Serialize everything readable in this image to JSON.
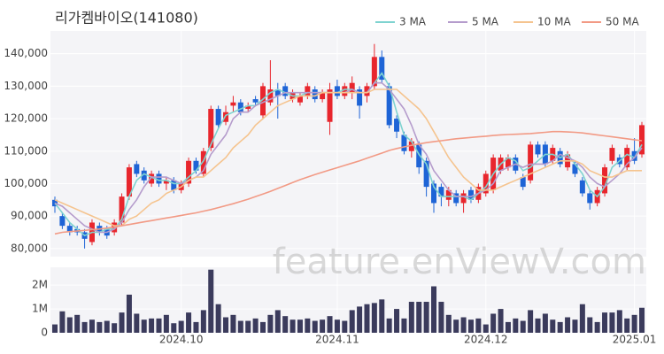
{
  "chart_data": {
    "type": "candlestick",
    "title": "리가켐바이오(141080)",
    "watermark": "feature.enViewV.com",
    "categories": [
      null,
      null,
      null,
      null,
      null,
      null,
      null,
      null,
      null,
      null,
      null,
      null,
      null,
      null,
      null,
      null,
      null,
      "2024.10",
      null,
      null,
      null,
      null,
      null,
      null,
      null,
      null,
      null,
      null,
      null,
      null,
      null,
      null,
      null,
      null,
      null,
      null,
      null,
      null,
      "2024.11",
      null,
      null,
      null,
      null,
      null,
      null,
      null,
      null,
      null,
      null,
      null,
      null,
      null,
      null,
      null,
      null,
      null,
      null,
      null,
      "2024.12",
      null,
      null,
      null,
      null,
      null,
      null,
      null,
      null,
      null,
      null,
      null,
      null,
      null,
      null,
      null,
      null,
      null,
      null,
      null,
      "2025.01",
      null
    ],
    "open": [
      95000,
      90000,
      87000,
      86000,
      85000,
      82000,
      87000,
      86000,
      85000,
      88000,
      96000,
      106000,
      104000,
      100000,
      103000,
      100000,
      101000,
      98000,
      100000,
      107000,
      103000,
      111000,
      123000,
      119000,
      124000,
      125000,
      123000,
      126000,
      121000,
      125000,
      129000,
      130000,
      126000,
      125000,
      127000,
      129000,
      126000,
      119000,
      130000,
      127000,
      128000,
      129000,
      127000,
      130000,
      139000,
      130000,
      120000,
      115000,
      110000,
      112000,
      107000,
      100000,
      99000,
      95000,
      97000,
      94000,
      98000,
      95000,
      97000,
      98000,
      104000,
      105000,
      108000,
      102000,
      101000,
      112000,
      112000,
      107000,
      110000,
      105000,
      106000,
      101000,
      97000,
      94000,
      97000,
      107000,
      108000,
      105000,
      110000,
      109000
    ],
    "high": [
      96000,
      91000,
      88000,
      87000,
      86000,
      89000,
      88000,
      87000,
      89000,
      97000,
      106000,
      107000,
      105000,
      104000,
      104000,
      102000,
      102000,
      101000,
      108000,
      108000,
      111000,
      124000,
      124000,
      124000,
      127000,
      126000,
      125000,
      127000,
      131000,
      138000,
      131000,
      131000,
      129000,
      128000,
      131000,
      130000,
      129000,
      131000,
      132000,
      131000,
      133000,
      130000,
      131000,
      143000,
      141000,
      131000,
      121000,
      116000,
      114000,
      113000,
      108000,
      101000,
      100000,
      99000,
      98000,
      98000,
      99000,
      100000,
      104000,
      109000,
      109000,
      109000,
      109000,
      103000,
      113000,
      113000,
      113000,
      112000,
      111000,
      110000,
      107000,
      102000,
      98000,
      99000,
      106000,
      112000,
      109000,
      112000,
      114000,
      119000
    ],
    "low": [
      91000,
      86000,
      84000,
      84000,
      80000,
      81000,
      84000,
      83000,
      84000,
      87000,
      95000,
      102000,
      100000,
      99000,
      99000,
      98000,
      97000,
      97000,
      99000,
      103000,
      102000,
      110000,
      117000,
      118000,
      122000,
      121000,
      122000,
      124000,
      120000,
      124000,
      120000,
      126000,
      125000,
      124000,
      126000,
      125000,
      125000,
      115000,
      126000,
      126000,
      126000,
      120000,
      125000,
      129000,
      131000,
      117000,
      114000,
      109000,
      108000,
      103000,
      96000,
      91000,
      93000,
      93000,
      93000,
      91000,
      94000,
      94000,
      96000,
      97000,
      103000,
      104000,
      103000,
      98000,
      100000,
      108000,
      105000,
      106000,
      105000,
      104000,
      102000,
      96000,
      92000,
      93000,
      96000,
      106000,
      105000,
      104000,
      106000,
      108000
    ],
    "close": [
      93000,
      87000,
      85000,
      85000,
      83000,
      88000,
      85000,
      84000,
      88000,
      96000,
      105000,
      103000,
      101000,
      103000,
      100000,
      101000,
      98000,
      100000,
      107000,
      104000,
      110000,
      123000,
      118000,
      122000,
      125000,
      122000,
      124000,
      125000,
      130000,
      129000,
      127000,
      127000,
      128000,
      127000,
      130000,
      126000,
      128000,
      129000,
      127000,
      130000,
      131000,
      124000,
      130000,
      139000,
      132000,
      118000,
      116000,
      110000,
      113000,
      105000,
      99000,
      94000,
      96000,
      98000,
      94000,
      97000,
      95000,
      99000,
      103000,
      108000,
      108000,
      108000,
      104000,
      99000,
      112000,
      109000,
      106000,
      111000,
      106000,
      109000,
      103000,
      97000,
      94000,
      98000,
      105000,
      111000,
      106000,
      111000,
      107000,
      118000
    ],
    "up_color": "#e8262d",
    "down_color": "#1e64d6",
    "ylim": [
      77500,
      147000
    ],
    "yticks": [
      {
        "value": 80000,
        "label": "80,000"
      },
      {
        "value": 90000,
        "label": "90,000"
      },
      {
        "value": 100000,
        "label": "100,000"
      },
      {
        "value": 110000,
        "label": "110,000"
      },
      {
        "value": 120000,
        "label": "120,000"
      },
      {
        "value": 130000,
        "label": "130,000"
      },
      {
        "value": 140000,
        "label": "140,000"
      }
    ],
    "grid": true,
    "series": [
      {
        "name": "3 MA",
        "color": "#7fd3d0",
        "values": [
          94000,
          91000,
          88000,
          86000,
          84000,
          85000,
          85000,
          86000,
          86000,
          89000,
          96000,
          101000,
          103000,
          102000,
          101000,
          101000,
          100000,
          100000,
          102000,
          104000,
          107000,
          112000,
          117000,
          121000,
          122000,
          123000,
          124000,
          124000,
          126000,
          128000,
          129000,
          128000,
          127000,
          127000,
          128000,
          128000,
          128000,
          128000,
          128000,
          129000,
          129000,
          128000,
          128000,
          131000,
          134000,
          130000,
          122000,
          115000,
          113000,
          109000,
          106000,
          99000,
          96000,
          96000,
          96000,
          96000,
          95000,
          97000,
          99000,
          103000,
          106000,
          108000,
          107000,
          104000,
          105000,
          107000,
          109000,
          109000,
          108000,
          109000,
          106000,
          103000,
          98000,
          96000,
          99000,
          105000,
          107000,
          109000,
          108000,
          112000
        ]
      },
      {
        "name": "5 MA",
        "color": "#b59ccc",
        "values": [
          94000,
          93000,
          91000,
          89000,
          87000,
          86000,
          85000,
          85000,
          86000,
          88000,
          92000,
          95000,
          99000,
          102000,
          102000,
          102000,
          101000,
          100000,
          101000,
          102000,
          104000,
          109000,
          112000,
          115000,
          120000,
          122000,
          122000,
          124000,
          125000,
          126000,
          127000,
          128000,
          128000,
          128000,
          128000,
          128000,
          128000,
          128000,
          128000,
          128000,
          129000,
          128000,
          128000,
          131000,
          131000,
          129000,
          126000,
          123000,
          118000,
          112000,
          109000,
          104000,
          101000,
          98000,
          96000,
          96000,
          96000,
          97000,
          98000,
          100000,
          104000,
          105000,
          106000,
          105000,
          106000,
          106000,
          106000,
          107000,
          109000,
          108000,
          107000,
          105000,
          102000,
          100000,
          99000,
          101000,
          103000,
          106000,
          108000,
          111000
        ]
      },
      {
        "name": "10 MA",
        "color": "#f5c48f",
        "values": [
          95000,
          94000,
          93000,
          92000,
          91000,
          90000,
          89000,
          88000,
          87000,
          87000,
          89000,
          90000,
          92000,
          94000,
          95000,
          97000,
          98000,
          99000,
          101000,
          102000,
          102000,
          104000,
          106000,
          108000,
          111000,
          113000,
          115000,
          118000,
          120000,
          122000,
          124000,
          125000,
          126000,
          127000,
          127000,
          127000,
          128000,
          128000,
          128000,
          128000,
          128000,
          128000,
          128000,
          129000,
          129000,
          129000,
          129000,
          127000,
          125000,
          123000,
          120000,
          116000,
          112000,
          108000,
          105000,
          102000,
          100000,
          98000,
          98000,
          98000,
          99000,
          100000,
          101000,
          102000,
          103000,
          104000,
          105000,
          106000,
          107000,
          107000,
          107000,
          106000,
          104000,
          103000,
          102000,
          102000,
          103000,
          104000,
          104000,
          104000
        ]
      },
      {
        "name": "50 MA",
        "color": "#f29a85",
        "values": [
          84500,
          85000,
          85200,
          85400,
          85600,
          85800,
          86000,
          86300,
          86600,
          87000,
          87400,
          87800,
          88200,
          88600,
          89000,
          89400,
          89800,
          90200,
          90600,
          91000,
          91500,
          92000,
          92600,
          93200,
          93800,
          94500,
          95200,
          96000,
          96800,
          97600,
          98500,
          99400,
          100300,
          101200,
          102000,
          102800,
          103500,
          104200,
          104900,
          105600,
          106300,
          107000,
          107800,
          108600,
          109400,
          110200,
          110800,
          111300,
          111800,
          112200,
          112600,
          112900,
          113200,
          113500,
          113800,
          114000,
          114200,
          114400,
          114600,
          114800,
          115000,
          115100,
          115200,
          115300,
          115400,
          115600,
          115800,
          116000,
          116000,
          115900,
          115800,
          115600,
          115300,
          115000,
          114700,
          114400,
          114100,
          113800,
          113500,
          113200
        ]
      }
    ],
    "volume": {
      "color": "#3b3b5c",
      "values": [
        350000,
        900000,
        650000,
        750000,
        450000,
        550000,
        450000,
        500000,
        400000,
        850000,
        1600000,
        800000,
        550000,
        600000,
        600000,
        750000,
        400000,
        500000,
        850000,
        450000,
        950000,
        2650000,
        1200000,
        650000,
        750000,
        500000,
        500000,
        600000,
        450000,
        750000,
        950000,
        700000,
        550000,
        550000,
        600000,
        500000,
        550000,
        700000,
        550000,
        500000,
        950000,
        1100000,
        1200000,
        1250000,
        1400000,
        600000,
        1000000,
        600000,
        1300000,
        1300000,
        1300000,
        1950000,
        1300000,
        750000,
        550000,
        650000,
        550000,
        600000,
        350000,
        800000,
        1000000,
        450000,
        600000,
        500000,
        950000,
        600000,
        800000,
        550000,
        450000,
        650000,
        550000,
        1200000,
        650000,
        450000,
        850000,
        850000,
        950000,
        600000,
        750000,
        1050000
      ],
      "ylim": [
        0,
        2750000
      ],
      "yticks": [
        0,
        {
          "value": 1000000,
          "label": "1M"
        },
        {
          "value": 2000000,
          "label": "2M"
        }
      ]
    }
  }
}
